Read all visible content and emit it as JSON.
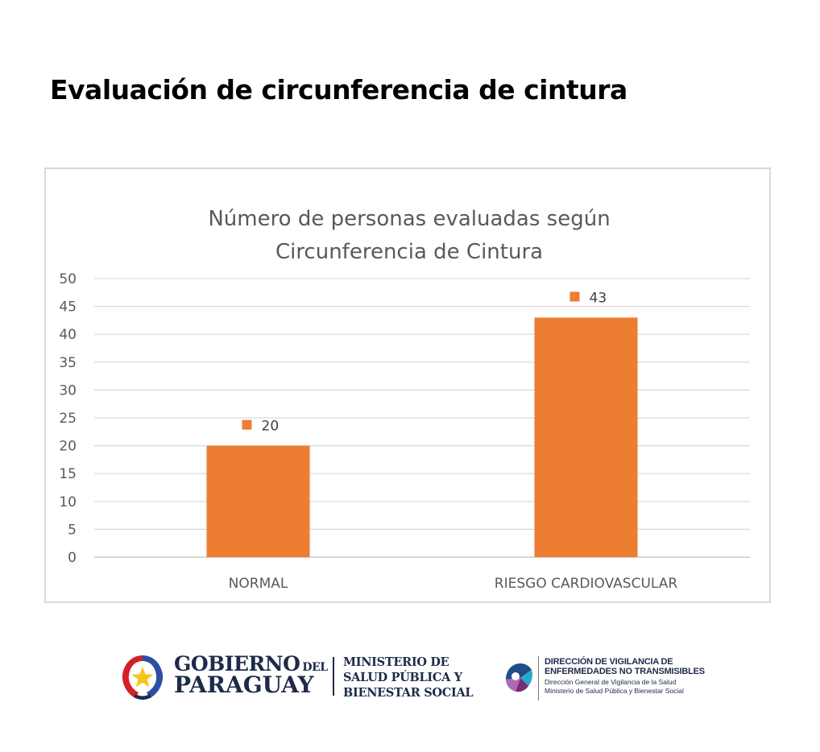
{
  "page": {
    "title": "Evaluación de circunferencia de cintura"
  },
  "chart_data": {
    "type": "bar",
    "title_lines": [
      "Número de personas evaluadas según",
      "Circunferencia de Cintura"
    ],
    "categories": [
      "NORMAL",
      "RIESGO CARDIOVASCULAR"
    ],
    "values": [
      20,
      43
    ],
    "data_labels": [
      "20",
      "43"
    ],
    "y_ticks": [
      "0",
      "5",
      "10",
      "15",
      "20",
      "25",
      "30",
      "35",
      "40",
      "45",
      "50"
    ],
    "ylim": [
      0,
      50
    ],
    "gridlines": true,
    "legend": "none",
    "bar_color": "#ed7d31",
    "xlabel": "",
    "ylabel": ""
  },
  "footer": {
    "gov_line1": "GOBIERNO",
    "gov_del": "DEL",
    "gov_line2": "PARAGUAY",
    "ministry_lines": [
      "MINISTERIO DE",
      "SALUD PÚBLICA Y",
      "BIENESTAR SOCIAL"
    ],
    "dvent_title_lines": [
      "DIRECCIÓN DE VIGILANCIA DE",
      "ENFERMEDADES NO TRANSMISIBLES"
    ],
    "dvent_sub_lines": [
      "Dirección General de Vigilancia de la Salud",
      "Ministerio de Salud Pública y Bienestar Social"
    ]
  }
}
